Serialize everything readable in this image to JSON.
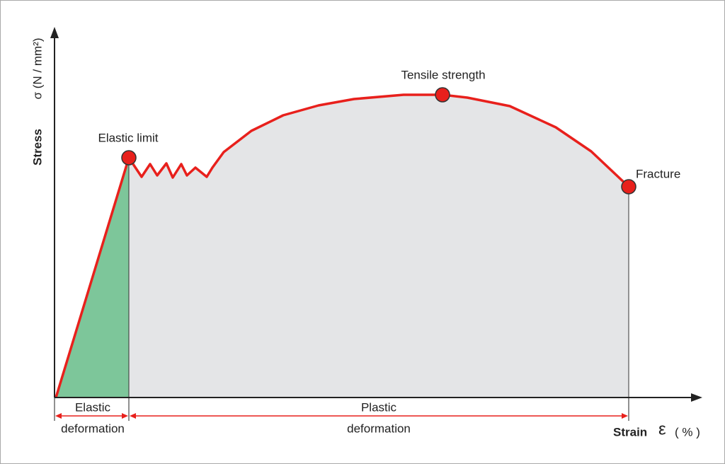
{
  "axes": {
    "y_label": "Stress",
    "y_unit": "σ (N / mm²)",
    "x_label": "Strain",
    "x_symbol": "ε",
    "x_unit": "( % )"
  },
  "points": [
    {
      "label": "Elastic limit"
    },
    {
      "label": "Tensile strength"
    },
    {
      "label": "Fracture"
    }
  ],
  "regions": [
    {
      "name": "Elastic",
      "sub": "deformation"
    },
    {
      "name": "Plastic",
      "sub": "deformation"
    }
  ]
}
